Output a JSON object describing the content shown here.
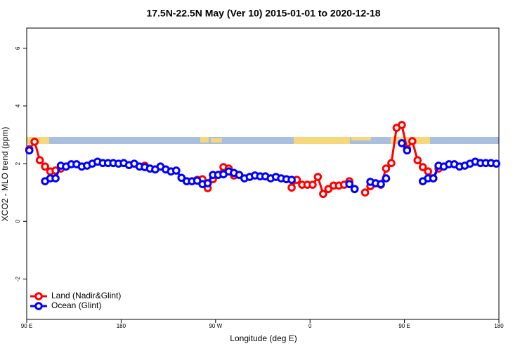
{
  "chart_data": {
    "type": "line",
    "title": "17.5N-22.5N May (Ver 10)   2015-01-01 to 2020-12-18",
    "x_label": "Longitude (deg E)",
    "y_label": "XCO2 - MLO trend (ppm)",
    "xlim": [
      90,
      540
    ],
    "ylim": [
      -3.4,
      6.7
    ],
    "xticks": [
      {
        "value": 90,
        "label": "90 E"
      },
      180,
      {
        "value": 270,
        "label": "90 W"
      },
      {
        "value": 360,
        "label": "0"
      },
      {
        "value": 450,
        "label": "90 E"
      },
      {
        "value": 540,
        "label": "180"
      }
    ],
    "yticks": [
      -2,
      0,
      2,
      4,
      6
    ],
    "legend": "bottom-left",
    "x": [
      92.5,
      97.5,
      102.5,
      107.5,
      112.5,
      117.5,
      122.5,
      127.5,
      132.5,
      137.5,
      142.5,
      147.5,
      152.5,
      157.5,
      162.5,
      167.5,
      172.5,
      177.5,
      182.5,
      187.5,
      192.5,
      197.5,
      202.5,
      207.5,
      212.5,
      217.5,
      222.5,
      227.5,
      232.5,
      237.5,
      242.5,
      247.5,
      252.5,
      257.5,
      262.5,
      267.5,
      272.5,
      277.5,
      282.5,
      287.5,
      292.5,
      297.5,
      302.5,
      307.5,
      312.5,
      317.5,
      322.5,
      327.5,
      332.5,
      337.5,
      342.5,
      347.5,
      352.5,
      357.5,
      362.5,
      367.5,
      372.5,
      377.5,
      382.5,
      387.5,
      392.5,
      397.5,
      402.5,
      407.5,
      412.5,
      417.5,
      422.5,
      427.5,
      432.5,
      437.5,
      442.5,
      447.5,
      452.5,
      457.5,
      462.5,
      467.5,
      472.5,
      477.5,
      482.5,
      487.5,
      492.5,
      497.5,
      502.5,
      507.5,
      512.5,
      517.5,
      522.5,
      527.5,
      532.5,
      537.5
    ],
    "series": [
      {
        "name": "Land (Nadir&Glint)",
        "color": "#ff0000",
        "values": [
          2.5,
          2.76,
          2.12,
          1.9,
          1.73,
          1.76,
          1.83,
          null,
          null,
          null,
          null,
          null,
          null,
          null,
          null,
          null,
          null,
          null,
          null,
          null,
          null,
          null,
          1.93,
          null,
          null,
          null,
          null,
          null,
          null,
          null,
          null,
          null,
          1.44,
          1.46,
          1.15,
          1.46,
          1.61,
          1.88,
          1.83,
          1.59,
          null,
          null,
          null,
          null,
          null,
          null,
          null,
          null,
          null,
          null,
          1.17,
          1.44,
          1.27,
          1.27,
          1.27,
          1.54,
          0.95,
          1.12,
          1.24,
          1.24,
          1.27,
          1.39,
          1.12,
          null,
          1.0,
          1.22,
          1.32,
          1.27,
          1.83,
          2.02,
          3.24,
          3.34,
          2.51,
          2.78,
          2.12,
          1.88,
          1.73,
          1.49,
          1.83,
          null,
          null,
          null,
          null,
          null,
          null,
          null,
          null,
          null,
          null,
          null
        ]
      },
      {
        "name": "Ocean (Glint)",
        "color": "#0000ff",
        "values": [
          2.46,
          null,
          null,
          1.39,
          1.49,
          1.49,
          1.93,
          1.9,
          1.98,
          1.98,
          1.9,
          1.93,
          2.0,
          2.07,
          2.02,
          2.02,
          2.02,
          2.0,
          2.02,
          1.95,
          2.0,
          1.9,
          1.88,
          1.83,
          1.8,
          1.9,
          1.8,
          1.73,
          1.76,
          1.51,
          1.39,
          1.39,
          1.41,
          1.29,
          1.32,
          1.61,
          1.61,
          1.63,
          1.73,
          1.68,
          1.61,
          1.49,
          1.54,
          1.59,
          1.56,
          1.56,
          1.49,
          1.54,
          1.49,
          1.46,
          1.44,
          null,
          null,
          null,
          null,
          null,
          null,
          null,
          null,
          null,
          null,
          1.29,
          1.12,
          null,
          null,
          1.37,
          1.32,
          1.29,
          1.49,
          null,
          null,
          2.71,
          2.46,
          null,
          null,
          1.39,
          1.49,
          1.49,
          1.93,
          1.9,
          1.98,
          1.98,
          1.9,
          1.93,
          2.0,
          2.07,
          2.02,
          2.02,
          2.02,
          2.0
        ]
      }
    ]
  }
}
